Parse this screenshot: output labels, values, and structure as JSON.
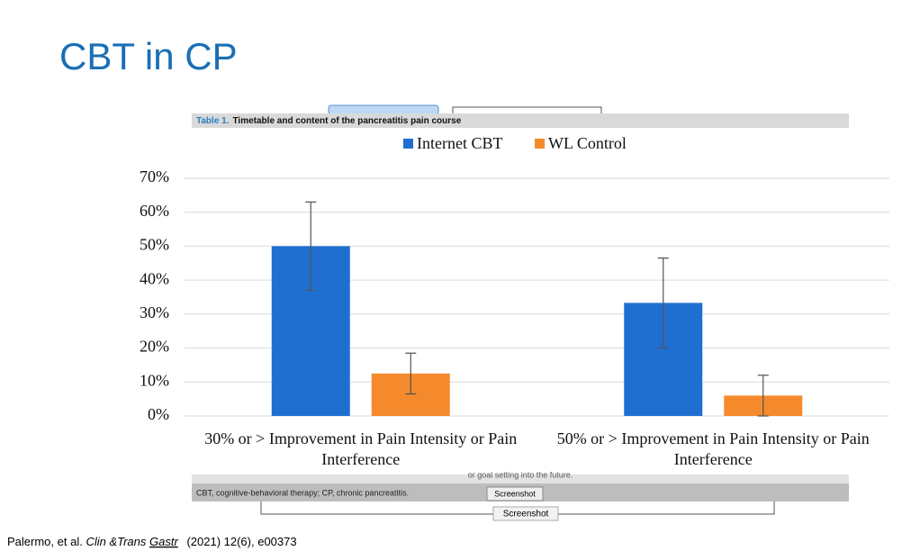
{
  "title": "CBT in CP",
  "table_caption": {
    "label": "Table 1.",
    "text": "Timetable and content of the pancreatitis pain course"
  },
  "cut_text": "or goal setting into the future.",
  "footnote": "CBT, cognitive-behavioral therapy; CP, chronic pancreatitis.",
  "buttons": [
    "Screenshot",
    "Screenshot"
  ],
  "citation": {
    "authors": "Palermo, et al.",
    "journal_1": "Clin &Trans",
    "journal_2": "Gastr",
    "details": "(2021) 12(6), e00373"
  },
  "chart_data": {
    "type": "bar",
    "categories": [
      "30% or > Improvement in Pain Intensity or Pain Interference",
      "50% or > Improvement in Pain Intensity or Pain Interference"
    ],
    "series": [
      {
        "name": "Internet CBT",
        "color": "#1f6fd0",
        "values": [
          50,
          33.3
        ],
        "errors": [
          13,
          13.2
        ]
      },
      {
        "name": "WL Control",
        "color": "#f58a2c",
        "values": [
          12.5,
          6
        ],
        "errors": [
          6,
          6
        ]
      }
    ],
    "ylim": [
      0,
      70
    ],
    "yticks": [
      {
        "value": 0,
        "label": "0%"
      },
      {
        "value": 10,
        "label": "10%"
      },
      {
        "value": 20,
        "label": "20%"
      },
      {
        "value": 30,
        "label": "30%"
      },
      {
        "value": 40,
        "label": "40%"
      },
      {
        "value": 50,
        "label": "50%"
      },
      {
        "value": 60,
        "label": "60%"
      },
      {
        "value": 70,
        "label": "70%"
      }
    ],
    "grid": true,
    "legend": "top"
  }
}
